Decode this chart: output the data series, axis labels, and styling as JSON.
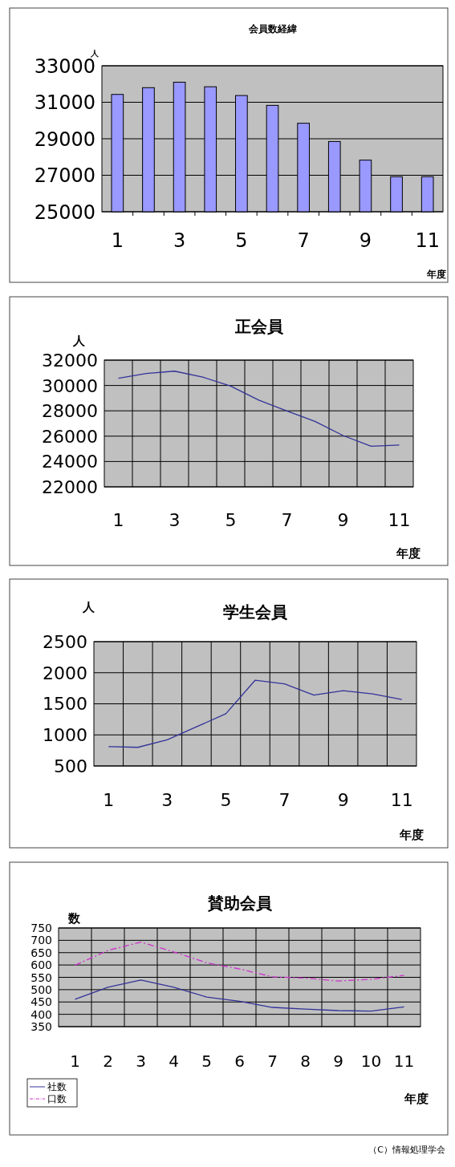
{
  "chart_data": [
    {
      "type": "bar",
      "title": "会員数経緯",
      "ylabel": "人",
      "xlabel": "年度",
      "categories": [
        "1",
        null,
        "3",
        null,
        "5",
        null,
        "7",
        null,
        "9",
        null,
        "11"
      ],
      "series": [
        {
          "color": "#9999ff",
          "values": [
            31430,
            31800,
            32100,
            31850,
            31370,
            30830,
            29850,
            28850,
            27830,
            26920,
            26920
          ]
        }
      ],
      "ylim": [
        25000,
        33000
      ],
      "yticks": [
        25000,
        27000,
        29000,
        31000,
        33000
      ],
      "grid": "y"
    },
    {
      "type": "line",
      "title": "正会員",
      "ylabel": "人",
      "xlabel": "年度",
      "categories": [
        "1",
        null,
        "3",
        null,
        "5",
        null,
        "7",
        null,
        "9",
        null,
        "11"
      ],
      "series": [
        {
          "color": "#333399",
          "values": [
            30570,
            30950,
            31130,
            30660,
            29950,
            28840,
            27990,
            27170,
            26050,
            25210,
            25300
          ]
        }
      ],
      "ylim": [
        22000,
        32000
      ],
      "yticks": [
        22000,
        24000,
        26000,
        28000,
        30000,
        32000
      ],
      "grid": true
    },
    {
      "type": "line",
      "title": "学生会員",
      "ylabel": "人",
      "xlabel": "年度",
      "categories": [
        "1",
        null,
        "3",
        null,
        "5",
        null,
        "7",
        null,
        "9",
        null,
        "11"
      ],
      "series": [
        {
          "color": "#333399",
          "values": [
            810,
            800,
            920,
            1130,
            1340,
            1880,
            1820,
            1640,
            1710,
            1660,
            1570
          ]
        }
      ],
      "ylim": [
        500,
        2500
      ],
      "yticks": [
        500,
        1000,
        1500,
        2000,
        2500
      ],
      "grid": true
    },
    {
      "type": "line",
      "title": "賛助会員",
      "ylabel": "数",
      "xlabel": "年度",
      "categories": [
        "1",
        "2",
        "3",
        "4",
        "5",
        "6",
        "7",
        "8",
        "9",
        "10",
        "11"
      ],
      "series": [
        {
          "name": "社数",
          "color": "#333399",
          "line_style": "solid",
          "values": [
            461,
            510,
            539,
            510,
            470,
            453,
            428,
            421,
            415,
            413,
            430
          ]
        },
        {
          "name": "口数",
          "color": "#cc33cc",
          "line_style": "dashed",
          "values": [
            599,
            659,
            693,
            653,
            609,
            584,
            552,
            547,
            535,
            542,
            558
          ]
        }
      ],
      "ylim": [
        350,
        750
      ],
      "yticks": [
        350,
        400,
        450,
        500,
        550,
        600,
        650,
        700,
        750
      ],
      "grid": true,
      "legend": "bottom left",
      "annotations": [
        "（C）情報処理学会"
      ]
    }
  ]
}
